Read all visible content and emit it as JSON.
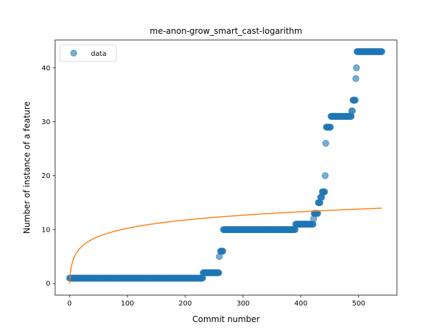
{
  "chart_data": {
    "type": "scatter",
    "title": "me-anon-grow_smart_cast-logarithm",
    "xlabel": "Commit number",
    "ylabel": "Number of instance of a feature",
    "xlim": [
      -25,
      566
    ],
    "ylim": [
      -2.15,
      45.15
    ],
    "xticks": [
      0,
      100,
      200,
      300,
      400,
      500
    ],
    "yticks": [
      0,
      10,
      20,
      30,
      40
    ],
    "grid": false,
    "legend": {
      "position": "top-left",
      "entries": [
        "data"
      ]
    },
    "colors": {
      "data": "#1f77b4",
      "fit": "#ff7f0e"
    },
    "series": [
      {
        "name": "data",
        "kind": "points",
        "segments": [
          {
            "x_from": 0,
            "x_to": 230,
            "y": 1
          },
          {
            "x_from": 231,
            "x_to": 258,
            "y": 2
          },
          {
            "x_from": 261,
            "x_to": 265,
            "y": 6
          },
          {
            "x_from": 266,
            "x_to": 390,
            "y": 10
          },
          {
            "x_from": 391,
            "x_to": 421,
            "y": 11
          },
          {
            "x_from": 424,
            "x_to": 429,
            "y": 13
          },
          {
            "x_from": 430,
            "x_to": 433,
            "y": 15
          },
          {
            "x_from": 434,
            "x_to": 436,
            "y": 16
          },
          {
            "x_from": 437,
            "x_to": 441,
            "y": 17
          },
          {
            "x_from": 444,
            "x_to": 451,
            "y": 29
          },
          {
            "x_from": 452,
            "x_to": 487,
            "y": 31
          },
          {
            "x_from": 488,
            "x_to": 489,
            "y": 32
          },
          {
            "x_from": 490,
            "x_to": 494,
            "y": 34
          },
          {
            "x_from": 497,
            "x_to": 540,
            "y": 43
          }
        ],
        "points": [
          [
            259,
            5
          ],
          [
            422,
            12
          ],
          [
            423,
            13
          ],
          [
            442,
            20
          ],
          [
            443,
            26
          ],
          [
            495,
            38
          ],
          [
            496,
            40
          ]
        ]
      },
      {
        "kind": "line",
        "model": "a*ln(x+1)",
        "a": 2.22,
        "x_range": [
          0,
          540
        ]
      }
    ]
  }
}
